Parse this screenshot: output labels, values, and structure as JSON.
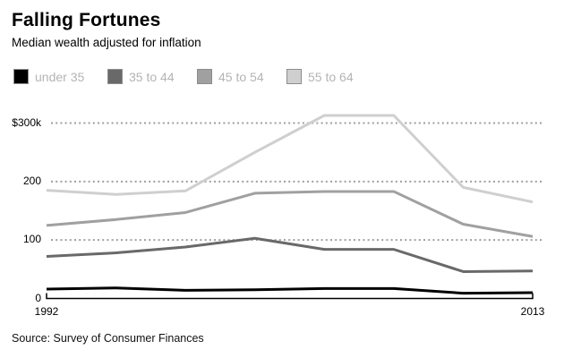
{
  "chart_data": {
    "type": "line",
    "title": "Falling Fortunes",
    "subtitle": "Median wealth adjusted for inflation",
    "y_unit": "thousands of dollars",
    "x": [
      1992,
      1995,
      1998,
      2001,
      2004,
      2007,
      2010,
      2013
    ],
    "x_range": [
      1992,
      2013
    ],
    "y_range": [
      0,
      340
    ],
    "grid": "horizontal-dotted",
    "legend_position": "top-left",
    "series": [
      {
        "name": "under 35",
        "color": "#000000",
        "values": [
          16,
          18,
          14,
          15,
          17,
          17,
          9,
          10
        ]
      },
      {
        "name": "35 to 44",
        "color": "#696969",
        "values": [
          72,
          78,
          88,
          103,
          84,
          84,
          46,
          47
        ]
      },
      {
        "name": "45 to 54",
        "color": "#a0a0a0",
        "values": [
          125,
          135,
          147,
          180,
          183,
          183,
          127,
          106
        ]
      },
      {
        "name": "55 to 64",
        "color": "#cfcfcf",
        "values": [
          185,
          178,
          184,
          250,
          313,
          313,
          190,
          165
        ]
      }
    ],
    "y_ticks": [
      {
        "label": "$300k",
        "value": 300
      },
      {
        "label": "200",
        "value": 200
      },
      {
        "label": "100",
        "value": 100
      },
      {
        "label": "0",
        "value": 0
      }
    ],
    "x_ticks": [
      {
        "label": "1992",
        "value": 1992
      },
      {
        "label": "2013",
        "value": 2013
      }
    ]
  },
  "footer": {
    "source_text": "Source: Survey of Consumer Finances"
  },
  "colors": {
    "legend_text": "#b4b4b4",
    "gridline": "#9e9e9e",
    "axis": "#000000"
  }
}
